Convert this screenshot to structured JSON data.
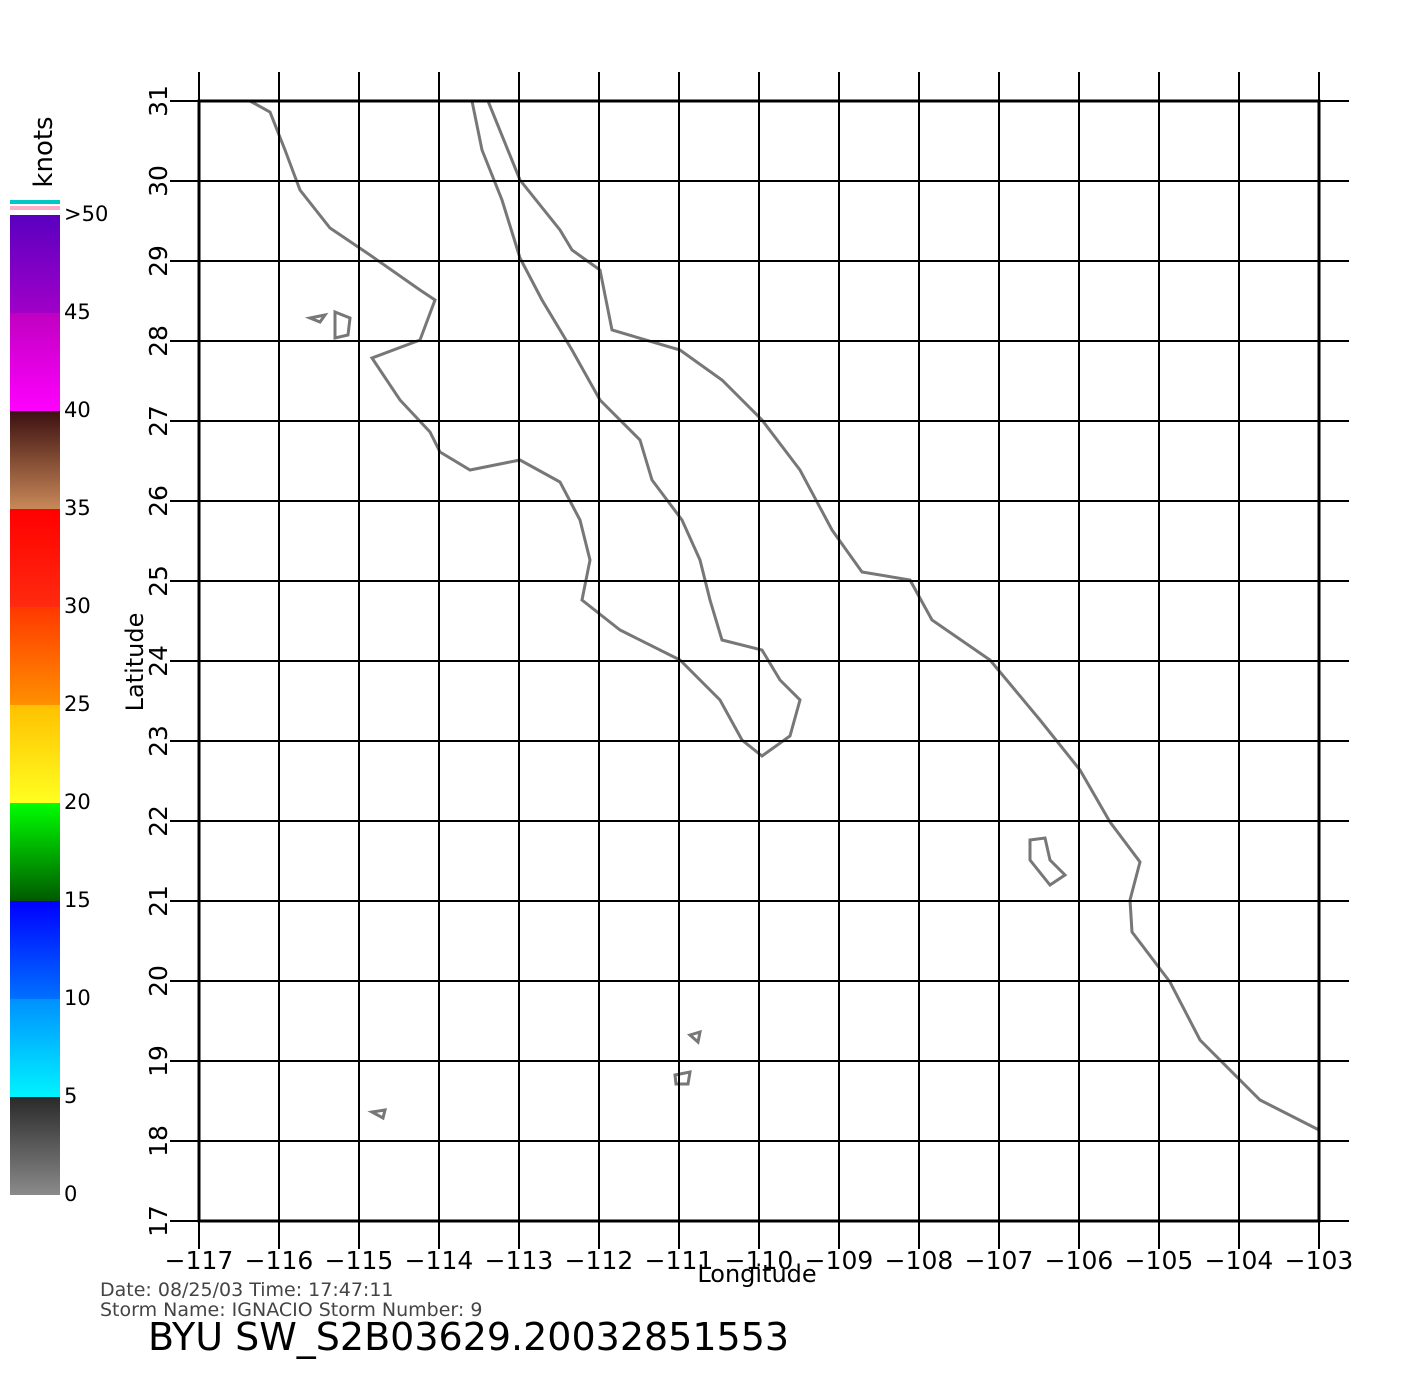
{
  "chart_data": {
    "type": "map",
    "xlabel": "Longitude",
    "ylabel": "Latitude",
    "xlim": [
      -117,
      -103
    ],
    "ylim": [
      17,
      31
    ],
    "xticks": [
      {
        "value": -117,
        "label": "−117"
      },
      {
        "value": -116,
        "label": "−116"
      },
      {
        "value": -115,
        "label": "−115"
      },
      {
        "value": -114,
        "label": "−114"
      },
      {
        "value": -113,
        "label": "−113"
      },
      {
        "value": -112,
        "label": "−112"
      },
      {
        "value": -111,
        "label": "−111"
      },
      {
        "value": -110,
        "label": "−110"
      },
      {
        "value": -109,
        "label": "−109"
      },
      {
        "value": -108,
        "label": "−108"
      },
      {
        "value": -107,
        "label": "−107"
      },
      {
        "value": -106,
        "label": "−106"
      },
      {
        "value": -105,
        "label": "−105"
      },
      {
        "value": -104,
        "label": "−104"
      },
      {
        "value": -103,
        "label": "−103"
      }
    ],
    "yticks": [
      17,
      18,
      19,
      20,
      21,
      22,
      23,
      24,
      25,
      26,
      27,
      28,
      29,
      30,
      31
    ],
    "grid": true,
    "colorbar": {
      "label": "knots",
      "ticks": [
        0,
        5,
        10,
        15,
        20,
        25,
        30,
        35,
        40,
        45,
        {
          "value": 50,
          "label": ">50"
        }
      ],
      "colors": [
        [
          "#8a8a8a",
          "#2a2a2a"
        ],
        [
          "#00f4ff",
          "#0090ff"
        ],
        [
          "#0070ff",
          "#0000ff"
        ],
        [
          "#005a00",
          "#00ff00"
        ],
        [
          "#ffff20",
          "#ffc000"
        ],
        [
          "#ff9000",
          "#ff3800"
        ],
        [
          "#ff2a10",
          "#ff0000"
        ],
        [
          "#c88858",
          "#3c1010"
        ],
        [
          "#ff00ff",
          "#c000c0"
        ],
        [
          "#a000c8",
          "#5a00c0"
        ]
      ]
    },
    "date_line": "Date: 08/25/03   Time: 17:47:11",
    "storm_line": "Storm  Name: IGNACIO   Storm  Number: 9",
    "footer": "BYU  SW_S2B03629.20032851553"
  }
}
